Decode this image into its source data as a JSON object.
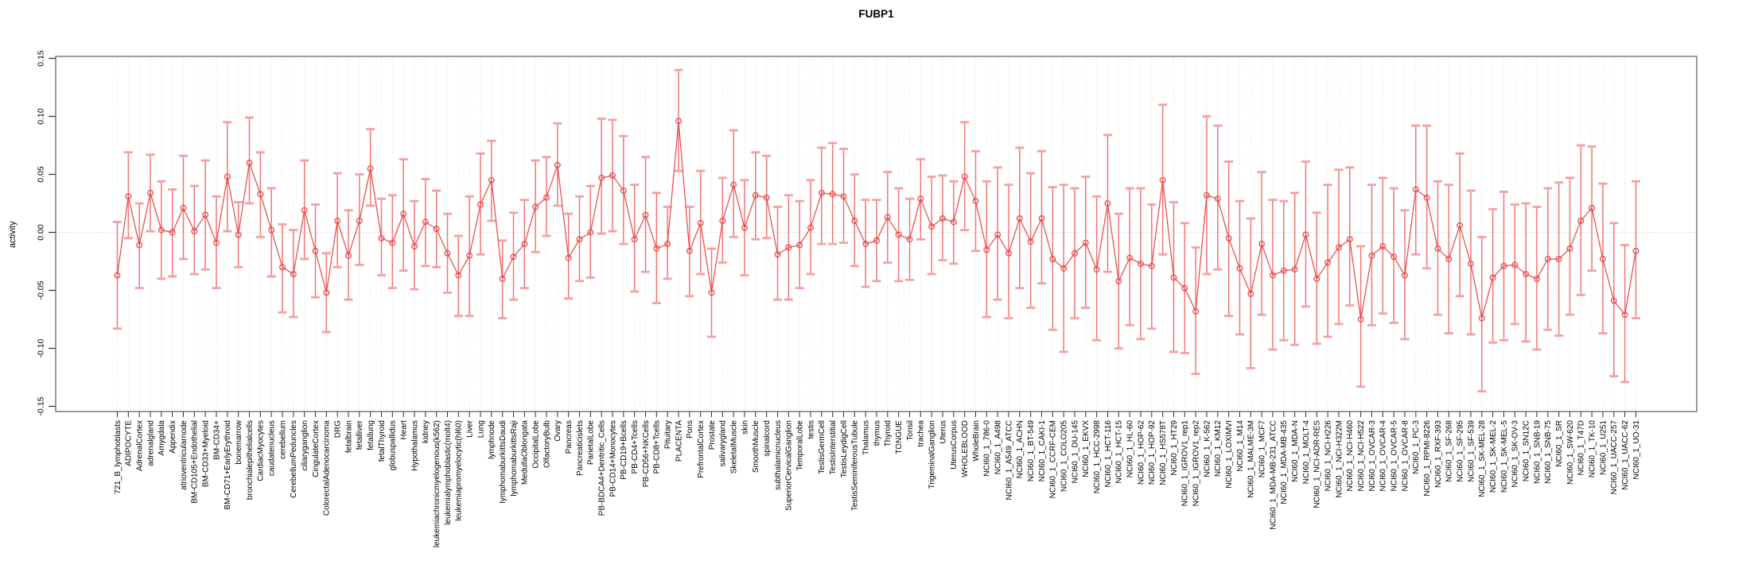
{
  "chart_data": {
    "type": "scatter",
    "title": "FUBP1",
    "xlabel": "",
    "ylabel": "activity",
    "ylim": [
      -0.15,
      0.15
    ],
    "ytick_labels": [
      "0.15",
      "0.10",
      "0.05",
      "0.00",
      "-0.05",
      "-0.10",
      "-0.15"
    ],
    "yticks": [
      0.15,
      0.1,
      0.05,
      0.0,
      -0.05,
      -0.1,
      -0.15
    ],
    "grid": "vertical dotted gridline per category, dotted horizontal line at 0",
    "legend": "none",
    "marker": "open-circle",
    "error_bars": true,
    "categories": [
      "721_B_lymphoblasts",
      "ADIPOCYTE",
      "AdrenalCortex",
      "adrenalgland",
      "Amygdala",
      "Appendix",
      "atrioventricularnode",
      "BM-CD105+Endothelial",
      "BM-CD33+Myeloid",
      "BM-CD34+",
      "BM-CD71+EarlyErythroid",
      "bonemarrow",
      "bronchialepithelialcells",
      "CardiacMyocytes",
      "caudatenucleus",
      "cerebellum",
      "CerebellumPeduncles",
      "ciliaryganglion",
      "CingulateCortex",
      "ColorectalAdenocarcinoma",
      "DRG",
      "fetalbrain",
      "fetalliver",
      "fetallung",
      "fetalThyroid",
      "globuspallidus",
      "Heart",
      "Hypothalamus",
      "kidney",
      "leukemiachronicmyelogenous(k562)",
      "leukemialymphoblastic(molt4)",
      "leukemiapromyelocytic(hl60)",
      "Liver",
      "Lung",
      "lymphnode",
      "lymphomaburkittsDaudi",
      "lymphomaburkittsRaji",
      "MedullaOblongata",
      "OccipitalLobe",
      "OlfactoryBulb",
      "Ovary",
      "Pancreas",
      "Pancreaticislets",
      "ParietalLobe",
      "PB-BDCA4+Dentritic_Cells",
      "PB-CD14+Monocytes",
      "PB-CD19+Bcells",
      "PB-CD4+Tcells",
      "PB-CD56+NKCells",
      "PB-CD8+Tcells",
      "Pituitary",
      "PLACENTA",
      "Pons",
      "PrefrontalCortex",
      "Prostate",
      "salivarygland",
      "SkeletalMuscle",
      "skin",
      "SmoothMuscle",
      "spinalcord",
      "subthalamicnucleus",
      "SuperiorCervicalGanglion",
      "TemporalLobe",
      "testis",
      "TestisGermCell",
      "TestisInterstitial",
      "TestisLeydigCell",
      "TestisSeminiferousTubule",
      "Thalamus",
      "thymus",
      "Thyroid",
      "TONGUE",
      "Tonsil",
      "trachea",
      "TrigeminalGanglion",
      "Uterus",
      "UterusCorpus",
      "WHOLEBLOOD",
      "WholeBrain",
      "NCI60_1_786-0",
      "NCI60_1_A498",
      "NCI60_1_A549_ATCC",
      "NCI60_1_ACHN",
      "NCI60_1_BT-549",
      "NCI60_1_CAKI-1",
      "NCI60_1_CCRF-CEM",
      "NCI60_1_COLO205",
      "NCI60_1_DU-145",
      "NCI60_1_EKVX",
      "NCI60_1_HCC-2998",
      "NCI60_1_HCT-116",
      "NCI60_1_HCT-15",
      "NCI60_1_HL-60",
      "NCI60_1_HOP-62",
      "NCI60_1_HOP-92",
      "NCI60_1_HS578T",
      "NCI60_1_HT29",
      "NCI60_1_IGROV1_rep1",
      "NCI60_1_IGROV1_rep2",
      "NCI60_1_K-562",
      "NCI60_1_KM12",
      "NCI60_1_LOXIMVI",
      "NCI60_1_M14",
      "NCI60_1_MALME-3M",
      "NCI60_1_MCF7",
      "NCI60_1_MDA-MB-231_ATCC",
      "NCI60_1_MDA-MB-435",
      "NCI60_1_MDA-N",
      "NCI60_1_MOLT-4",
      "NCI60_1_NCI-ADR-RES",
      "NCI60_1_NCI-H226",
      "NCI60_1_NCI-H322M",
      "NCI60_1_NCI-H460",
      "NCI60_1_NCI-H522",
      "NCI60_1_OVCAR-3",
      "NCI60_1_OVCAR-4",
      "NCI60_1_OVCAR-5",
      "NCI60_1_OVCAR-8",
      "NCI60_1_PC-3",
      "NCI60_1_RPMI-8226",
      "NCI60_1_RXF-393",
      "NCI60_1_SF-268",
      "NCI60_1_SF-295",
      "NCI60_1_SF-539",
      "NCI60_1_SK-MEL-28",
      "NCI60_1_SK-MEL-2",
      "NCI60_1_SK-MEL-5",
      "NCI60_1_SK-OV-3",
      "NCI60_1_SN12C",
      "NCI60_1_SNB-19",
      "NCI60_1_SNB-75",
      "NCI60_1_SR",
      "NCI60_1_SW-620",
      "NCI60_1_T47D",
      "NCI60_1_TK-10",
      "NCI60_1_U251",
      "NCI60_1_UACC-257",
      "NCI60_1_UACC-62",
      "NCI60_1_UO-31"
    ],
    "values": [
      -0.037,
      0.031,
      -0.011,
      0.034,
      0.002,
      0.0,
      0.021,
      0.001,
      0.015,
      -0.009,
      0.048,
      -0.002,
      0.06,
      0.033,
      0.002,
      -0.03,
      -0.036,
      0.019,
      -0.016,
      -0.052,
      0.01,
      -0.02,
      0.01,
      0.055,
      -0.005,
      -0.009,
      0.016,
      -0.012,
      0.009,
      0.003,
      -0.018,
      -0.037,
      -0.02,
      0.024,
      0.045,
      -0.04,
      -0.021,
      -0.01,
      0.022,
      0.03,
      0.058,
      -0.022,
      -0.006,
      0.0,
      0.047,
      0.049,
      0.036,
      -0.006,
      0.015,
      -0.014,
      -0.01,
      0.096,
      -0.016,
      0.008,
      -0.052,
      0.01,
      0.041,
      0.004,
      0.032,
      0.03,
      -0.019,
      -0.013,
      -0.011,
      0.004,
      0.034,
      0.033,
      0.031,
      0.01,
      -0.01,
      -0.007,
      0.013,
      -0.002,
      -0.006,
      0.029,
      0.005,
      0.012,
      0.009,
      0.048,
      0.027,
      -0.015,
      -0.002,
      -0.018,
      0.012,
      -0.008,
      0.012,
      -0.023,
      -0.031,
      -0.018,
      -0.009,
      -0.032,
      0.025,
      -0.042,
      -0.022,
      -0.027,
      -0.029,
      0.045,
      -0.039,
      -0.048,
      -0.068,
      0.032,
      0.029,
      -0.005,
      -0.031,
      -0.053,
      -0.01,
      -0.037,
      -0.033,
      -0.032,
      -0.002,
      -0.04,
      -0.026,
      -0.013,
      -0.006,
      -0.075,
      -0.02,
      -0.012,
      -0.021,
      -0.037,
      0.037,
      0.03,
      -0.014,
      -0.023,
      0.006,
      -0.027,
      -0.074,
      -0.039,
      -0.029,
      -0.028,
      -0.036,
      -0.04,
      -0.023,
      -0.023,
      -0.014,
      0.01,
      0.021,
      -0.023,
      -0.059,
      -0.071,
      -0.016
    ],
    "lower": [
      -0.083,
      -0.005,
      -0.048,
      0.001,
      -0.04,
      -0.038,
      -0.023,
      -0.036,
      -0.032,
      -0.048,
      0.001,
      -0.03,
      0.025,
      -0.004,
      -0.038,
      -0.069,
      -0.073,
      -0.023,
      -0.056,
      -0.086,
      -0.03,
      -0.058,
      -0.028,
      0.023,
      -0.037,
      -0.048,
      -0.033,
      -0.049,
      -0.029,
      -0.03,
      -0.052,
      -0.072,
      -0.072,
      -0.019,
      0.01,
      -0.074,
      -0.058,
      -0.048,
      -0.017,
      -0.003,
      0.023,
      -0.057,
      -0.042,
      -0.039,
      -0.001,
      0.001,
      -0.01,
      -0.051,
      -0.034,
      -0.061,
      -0.04,
      0.053,
      -0.055,
      -0.036,
      -0.09,
      -0.026,
      -0.004,
      -0.037,
      -0.006,
      -0.005,
      -0.058,
      -0.058,
      -0.048,
      -0.036,
      -0.01,
      -0.01,
      -0.009,
      -0.029,
      -0.047,
      -0.042,
      -0.026,
      -0.042,
      -0.041,
      -0.006,
      -0.036,
      -0.024,
      -0.027,
      0.002,
      -0.016,
      -0.073,
      -0.058,
      -0.074,
      -0.048,
      -0.065,
      -0.044,
      -0.084,
      -0.103,
      -0.074,
      -0.065,
      -0.093,
      -0.034,
      -0.1,
      -0.08,
      -0.092,
      -0.083,
      -0.019,
      -0.103,
      -0.104,
      -0.122,
      -0.036,
      -0.032,
      -0.072,
      -0.088,
      -0.117,
      -0.071,
      -0.101,
      -0.093,
      -0.097,
      -0.064,
      -0.096,
      -0.09,
      -0.079,
      -0.063,
      -0.133,
      -0.08,
      -0.07,
      -0.078,
      -0.092,
      -0.019,
      -0.031,
      -0.071,
      -0.087,
      -0.055,
      -0.088,
      -0.137,
      -0.095,
      -0.093,
      -0.079,
      -0.094,
      -0.101,
      -0.084,
      -0.089,
      -0.071,
      -0.054,
      -0.033,
      -0.087,
      -0.124,
      -0.129,
      -0.074
    ],
    "upper": [
      0.009,
      0.069,
      0.025,
      0.067,
      0.044,
      0.037,
      0.066,
      0.04,
      0.062,
      0.031,
      0.095,
      0.026,
      0.099,
      0.069,
      0.038,
      0.007,
      0.002,
      0.062,
      0.024,
      -0.018,
      0.051,
      0.019,
      0.05,
      0.089,
      0.029,
      0.032,
      0.063,
      0.027,
      0.046,
      0.036,
      0.016,
      -0.003,
      0.031,
      0.068,
      0.079,
      -0.007,
      0.017,
      0.028,
      0.062,
      0.065,
      0.094,
      0.016,
      0.031,
      0.04,
      0.098,
      0.097,
      0.083,
      0.041,
      0.065,
      0.034,
      0.022,
      0.14,
      0.022,
      0.053,
      -0.014,
      0.047,
      0.088,
      0.045,
      0.069,
      0.066,
      0.022,
      0.032,
      0.027,
      0.045,
      0.073,
      0.077,
      0.072,
      0.05,
      0.028,
      0.028,
      0.052,
      0.038,
      0.029,
      0.063,
      0.048,
      0.049,
      0.044,
      0.095,
      0.07,
      0.044,
      0.056,
      0.041,
      0.073,
      0.051,
      0.07,
      0.039,
      0.041,
      0.038,
      0.048,
      0.031,
      0.084,
      0.016,
      0.038,
      0.038,
      0.024,
      0.11,
      0.026,
      0.008,
      -0.013,
      0.1,
      0.092,
      0.061,
      0.027,
      0.012,
      0.052,
      0.028,
      0.027,
      0.034,
      0.061,
      0.017,
      0.041,
      0.054,
      0.056,
      -0.012,
      0.041,
      0.047,
      0.038,
      0.019,
      0.092,
      0.092,
      0.044,
      0.041,
      0.068,
      0.036,
      -0.004,
      0.02,
      0.035,
      0.024,
      0.025,
      0.022,
      0.038,
      0.043,
      0.047,
      0.075,
      0.074,
      0.042,
      0.008,
      -0.011,
      0.044
    ]
  },
  "colors": {
    "point": "#e84c4c",
    "line": "#e84c4c",
    "error_bar": "#ef7676",
    "error_cap": "#f5a0a0",
    "grid": "#dadada",
    "zero_line": "#c8c8c8",
    "box": "#848484",
    "tick": "#303030",
    "text": "#000000",
    "background": "#ffffff"
  }
}
